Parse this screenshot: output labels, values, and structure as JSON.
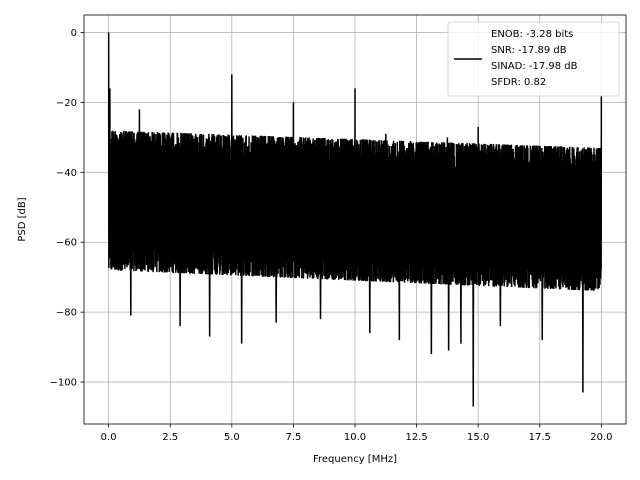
{
  "chart_data": {
    "type": "line",
    "title": "",
    "xlabel": "Frequency [MHz]",
    "ylabel": "PSD [dB]",
    "xlim": [
      -1.0,
      21.0
    ],
    "ylim": [
      -112,
      5
    ],
    "xticks": [
      0.0,
      2.5,
      5.0,
      7.5,
      10.0,
      12.5,
      15.0,
      17.5,
      20.0
    ],
    "xtick_labels": [
      "0.0",
      "2.5",
      "5.0",
      "7.5",
      "10.0",
      "12.5",
      "15.0",
      "17.5",
      "20.0"
    ],
    "yticks": [
      0,
      -20,
      -40,
      -60,
      -80,
      -100
    ],
    "ytick_labels": [
      "0",
      "−20",
      "−40",
      "−60",
      "−80",
      "−100"
    ],
    "grid": true,
    "legend_position": "top-right",
    "line_color": "#000000",
    "series": [
      {
        "name": "",
        "legend_lines": [
          "ENOB: -3.28 bits",
          "SNR: -17.89 dB",
          "SINAD: -17.98 dB",
          "SFDR: 0.82"
        ],
        "noise_floor_band": {
          "x_range": [
            0.0,
            20.0
          ],
          "upper_envelope_db": [
            -28,
            -33
          ],
          "lower_envelope_db": [
            -68,
            -74
          ]
        },
        "spurs": [
          {
            "x": 0.0,
            "y": 0
          },
          {
            "x": 0.05,
            "y": -16
          },
          {
            "x": 1.25,
            "y": -22
          },
          {
            "x": 5.0,
            "y": -12
          },
          {
            "x": 7.5,
            "y": -20
          },
          {
            "x": 10.0,
            "y": -16
          },
          {
            "x": 11.25,
            "y": -29
          },
          {
            "x": 13.75,
            "y": -30
          },
          {
            "x": 15.0,
            "y": -27
          },
          {
            "x": 20.0,
            "y": -18
          }
        ],
        "dips": [
          {
            "x": 0.9,
            "y": -81
          },
          {
            "x": 2.9,
            "y": -84
          },
          {
            "x": 4.1,
            "y": -87
          },
          {
            "x": 5.4,
            "y": -89
          },
          {
            "x": 6.8,
            "y": -83
          },
          {
            "x": 8.6,
            "y": -82
          },
          {
            "x": 10.6,
            "y": -86
          },
          {
            "x": 11.8,
            "y": -88
          },
          {
            "x": 13.1,
            "y": -92
          },
          {
            "x": 13.8,
            "y": -91
          },
          {
            "x": 14.3,
            "y": -89
          },
          {
            "x": 14.8,
            "y": -107
          },
          {
            "x": 15.9,
            "y": -84
          },
          {
            "x": 17.6,
            "y": -88
          },
          {
            "x": 19.25,
            "y": -103
          }
        ]
      }
    ]
  }
}
